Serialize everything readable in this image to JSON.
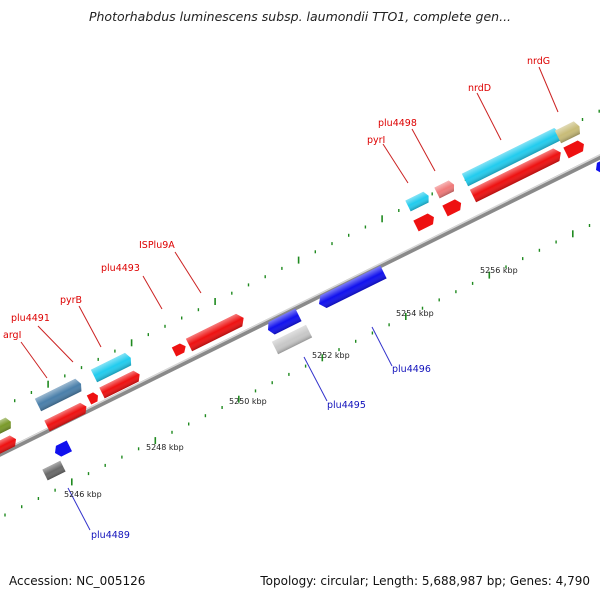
{
  "title": "Photorhabdus luminescens subsp. laumondii TTO1, complete gen...",
  "footer": {
    "accession": "Accession: NC_005126",
    "summary": "Topology: circular; Length: 5,688,987 bp; Genes: 4,790"
  },
  "colors": {
    "red_gene": "#ee1111",
    "red_label": "#dd0000",
    "blue_gene": "#1111ee",
    "blue_label": "#1111bb",
    "cyan_gene": "#22ccee",
    "steel_gene": "#4a7faa",
    "pink_gene": "#f07a7a",
    "khaki_gene": "#c8bc78",
    "olive_gene": "#7a9a2a",
    "gray_gene": "#c8c8c8",
    "dark_gray_gene": "#6a6a6a",
    "backbone": "#999999",
    "tick": "#1f8a1f",
    "leader": "#cc2222",
    "leader_blue": "#3333cc"
  },
  "scale_labels": [
    "5246 kbp",
    "5248 kbp",
    "5250 kbp",
    "5252 kbp",
    "5254 kbp",
    "5256 kbp"
  ],
  "gene_labels": {
    "argI": "argI",
    "plu4491": "plu4491",
    "pyrB": "pyrB",
    "plu4493": "plu4493",
    "ISPlu9A": "ISPlu9A",
    "pyrI": "pyrI",
    "plu4498": "plu4498",
    "nrdD": "nrdD",
    "nrdG": "nrdG",
    "plu4489": "plu4489",
    "plu4495": "plu4495",
    "plu4496": "plu4496"
  }
}
